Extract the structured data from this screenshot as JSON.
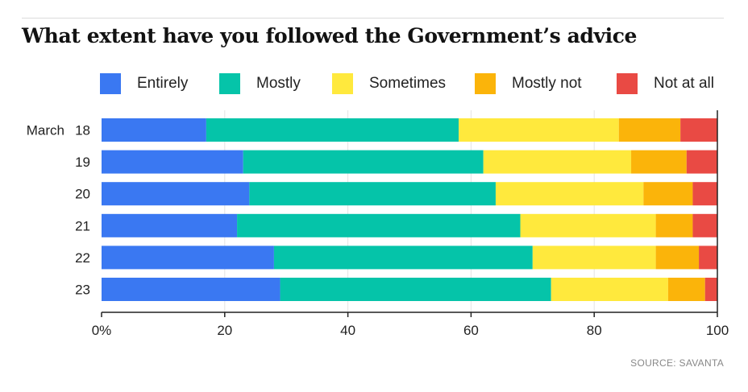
{
  "title": "What extent have you followed the Government’s advice",
  "source": "SOURCE: SAVANTA",
  "chart_data": {
    "type": "bar",
    "orientation": "horizontal",
    "stacked": true,
    "category_prefix": "March",
    "categories": [
      "18",
      "19",
      "20",
      "21",
      "22",
      "23"
    ],
    "series": [
      {
        "name": "Entirely",
        "color": "#3a78f2",
        "values": [
          17,
          23,
          24,
          22,
          28,
          29
        ]
      },
      {
        "name": "Mostly",
        "color": "#05c4a9",
        "values": [
          41,
          39,
          40,
          46,
          42,
          44
        ]
      },
      {
        "name": "Sometimes",
        "color": "#ffe93d",
        "values": [
          26,
          24,
          24,
          22,
          20,
          19
        ]
      },
      {
        "name": "Mostly not",
        "color": "#fbb40a",
        "values": [
          10,
          9,
          8,
          6,
          7,
          6
        ]
      },
      {
        "name": "Not at all",
        "color": "#e94a44",
        "values": [
          6,
          5,
          4,
          4,
          3,
          2
        ]
      }
    ],
    "x_ticks": [
      "0%",
      "20",
      "40",
      "60",
      "80",
      "100"
    ],
    "xlim": [
      0,
      100
    ],
    "grid": true,
    "legend_position": "top"
  }
}
